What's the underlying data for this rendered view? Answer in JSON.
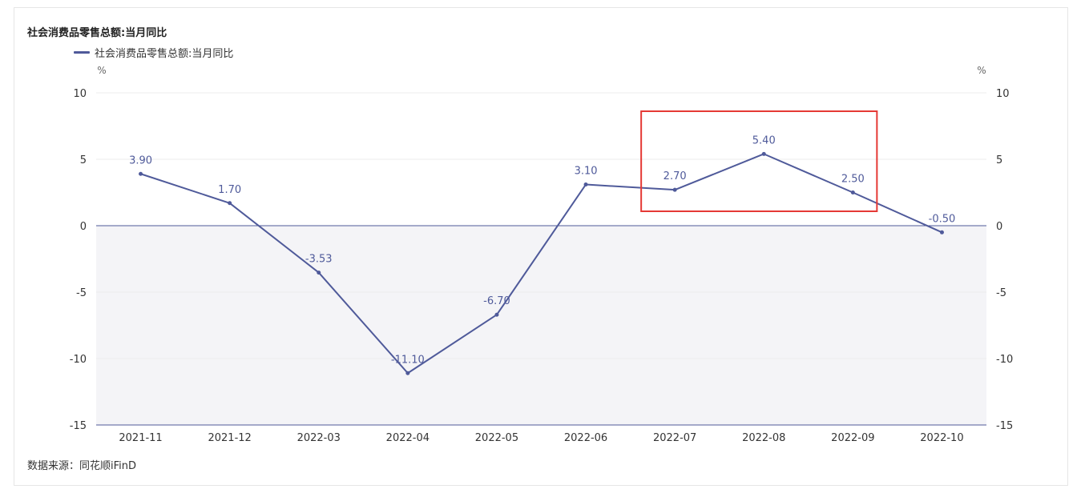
{
  "chart_title": "社会消费品零售总额:当月同比",
  "legend": {
    "label": "社会消费品零售总额:当月同比",
    "color": "#4f5a9a"
  },
  "source_text": "数据来源：同花顺iFinD",
  "highlight": {
    "color": "#e53935",
    "range_categories": [
      "2022-07",
      "2022-09"
    ]
  },
  "chart_data": {
    "type": "line",
    "title": "社会消费品零售总额:当月同比",
    "xlabel": "",
    "ylabel": "%",
    "y2label": "%",
    "ylim": [
      -15,
      10
    ],
    "yticks": [
      10,
      5,
      0,
      -5,
      -10,
      -15
    ],
    "grid": true,
    "legend_position": "top-left",
    "categories": [
      "2021-11",
      "2021-12",
      "2022-03",
      "2022-04",
      "2022-05",
      "2022-06",
      "2022-07",
      "2022-08",
      "2022-09",
      "2022-10"
    ],
    "series": [
      {
        "name": "社会消费品零售总额:当月同比",
        "color": "#4f5a9a",
        "values": [
          3.9,
          1.7,
          -3.53,
          -11.1,
          -6.7,
          3.1,
          2.7,
          5.4,
          2.5,
          -0.5
        ],
        "data_labels": [
          "3.90",
          "1.70",
          "-3.53",
          "-11.10",
          "-6.70",
          "3.10",
          "2.70",
          "5.40",
          "2.50",
          "-0.50"
        ]
      }
    ],
    "negative_area_fill": "#f4f4f7"
  }
}
